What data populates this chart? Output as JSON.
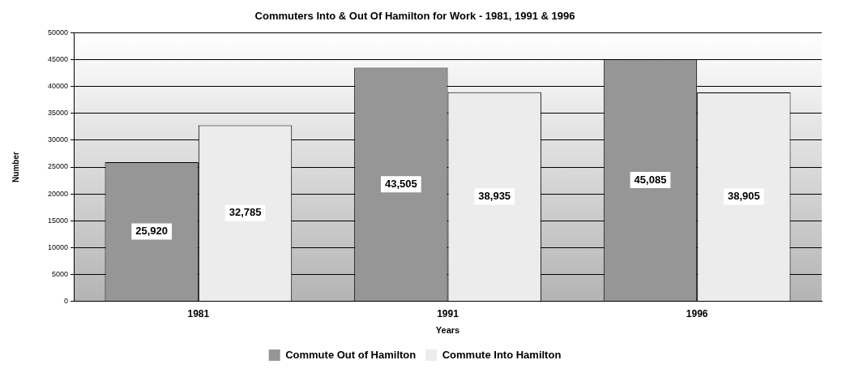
{
  "chart_data": {
    "type": "bar",
    "title": "Commuters Into & Out Of Hamilton for Work - 1981, 1991 & 1996",
    "xlabel": "Years",
    "ylabel": "Number",
    "categories": [
      "1981",
      "1991",
      "1996"
    ],
    "series": [
      {
        "name": "Commute Out of Hamilton",
        "color": "#969696",
        "values": [
          25920,
          43505,
          45085
        ],
        "value_labels": [
          "25,920",
          "43,505",
          "45,085"
        ]
      },
      {
        "name": "Commute Into Hamilton",
        "color": "#ececec",
        "values": [
          32785,
          38935,
          38905
        ],
        "value_labels": [
          "32,785",
          "38,935",
          "38,905"
        ]
      }
    ],
    "ylim": [
      0,
      50000
    ],
    "yticks": [
      0,
      5000,
      10000,
      15000,
      20000,
      25000,
      30000,
      35000,
      40000,
      45000,
      50000
    ],
    "grid": "y",
    "legend": "bottom"
  }
}
